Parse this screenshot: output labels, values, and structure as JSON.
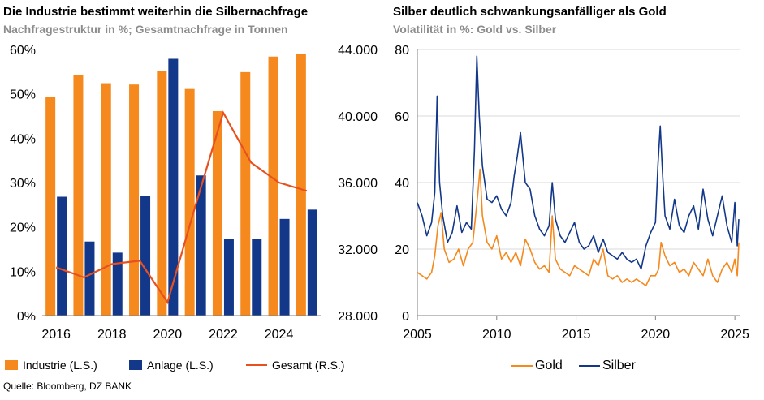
{
  "left": {
    "title": "Die Industrie bestimmt weiterhin die Silbernachfrage",
    "subtitle": "Nachfragestruktur in %; Gesamtnachfrage in Tonnen",
    "legend": [
      "Industrie (L.S.)",
      "Anlage (L.S.)",
      "Gesamt (R.S.)"
    ]
  },
  "right": {
    "title": "Silber deutlich schwankungsanfälliger als Gold",
    "subtitle": "Volatilität in %: Gold vs. Silber",
    "legend": [
      "Gold",
      "Silber"
    ]
  },
  "source": "Quelle: Bloomberg, DZ BANK",
  "colors": {
    "orange": "#f5891e",
    "navy": "#13388a",
    "red": "#e8501e",
    "grid": "#d9d9d9"
  },
  "chart_data": [
    {
      "type": "bar",
      "title": "Die Industrie bestimmt weiterhin die Silbernachfrage",
      "subtitle": "Nachfragestruktur in %; Gesamtnachfrage in Tonnen",
      "categories": [
        2016,
        2017,
        2018,
        2019,
        2020,
        2021,
        2022,
        2023,
        2024,
        2025
      ],
      "x_tick_labels": [
        "2016",
        "2018",
        "2020",
        "2022",
        "2024"
      ],
      "y_left_ticks": [
        "0%",
        "10%",
        "20%",
        "30%",
        "40%",
        "50%",
        "60%"
      ],
      "y_left_range": [
        0,
        60
      ],
      "y_right_ticks": [
        "28.000",
        "32.000",
        "36.000",
        "40.000",
        "44.000"
      ],
      "y_right_range": [
        28000,
        44000
      ],
      "series": [
        {
          "name": "Industrie (L.S.)",
          "axis": "left",
          "kind": "bar",
          "values": [
            49.3,
            54.2,
            52.4,
            52.1,
            55.1,
            51.1,
            46.1,
            54.9,
            58.4,
            59.0
          ]
        },
        {
          "name": "Anlage (L.S.)",
          "axis": "left",
          "kind": "bar",
          "values": [
            26.8,
            16.7,
            14.2,
            26.9,
            57.9,
            31.6,
            17.2,
            17.2,
            21.8,
            23.9
          ]
        },
        {
          "name": "Gesamt (R.S.)",
          "axis": "right",
          "kind": "line",
          "values": [
            30900,
            30300,
            31100,
            31300,
            28800,
            34600,
            40200,
            37200,
            36000,
            35500
          ]
        }
      ]
    },
    {
      "type": "line",
      "title": "Silber deutlich schwankungsanfälliger als Gold",
      "subtitle": "Volatilität in %: Gold vs. Silber",
      "x_range": [
        2005,
        2025.3
      ],
      "x_tick_labels": [
        "2005",
        "2010",
        "2015",
        "2020",
        "2025"
      ],
      "y_range": [
        0,
        80
      ],
      "y_ticks": [
        "0",
        "20",
        "40",
        "60",
        "80"
      ],
      "series": [
        {
          "name": "Gold",
          "x": [
            2005.0,
            2005.3,
            2005.6,
            2005.9,
            2006.1,
            2006.3,
            2006.5,
            2006.7,
            2007.0,
            2007.3,
            2007.6,
            2007.9,
            2008.2,
            2008.5,
            2008.8,
            2008.95,
            2009.1,
            2009.4,
            2009.7,
            2010.0,
            2010.3,
            2010.6,
            2010.9,
            2011.2,
            2011.5,
            2011.8,
            2012.1,
            2012.4,
            2012.7,
            2013.0,
            2013.3,
            2013.5,
            2013.7,
            2014.0,
            2014.3,
            2014.6,
            2014.9,
            2015.2,
            2015.5,
            2015.8,
            2016.1,
            2016.4,
            2016.7,
            2017.0,
            2017.3,
            2017.6,
            2017.9,
            2018.2,
            2018.5,
            2018.8,
            2019.1,
            2019.4,
            2019.7,
            2020.0,
            2020.2,
            2020.35,
            2020.6,
            2020.9,
            2021.2,
            2021.5,
            2021.8,
            2022.1,
            2022.4,
            2022.7,
            2023.0,
            2023.3,
            2023.6,
            2023.9,
            2024.2,
            2024.5,
            2024.8,
            2025.0,
            2025.15,
            2025.25
          ],
          "y": [
            13,
            12,
            11,
            13,
            18,
            27,
            31,
            20,
            16,
            17,
            20,
            15,
            20,
            22,
            36,
            44,
            30,
            22,
            20,
            24,
            17,
            19,
            16,
            19,
            15,
            23,
            20,
            16,
            14,
            15,
            13,
            30,
            17,
            14,
            13,
            12,
            15,
            14,
            13,
            12,
            17,
            15,
            20,
            12,
            11,
            12,
            10,
            11,
            10,
            11,
            10,
            9,
            12,
            12,
            14,
            22,
            18,
            15,
            16,
            13,
            14,
            12,
            16,
            14,
            12,
            17,
            12,
            10,
            14,
            16,
            13,
            17,
            12,
            22
          ]
        },
        {
          "name": "Silber",
          "x": [
            2005.0,
            2005.3,
            2005.6,
            2005.9,
            2006.1,
            2006.25,
            2006.4,
            2006.6,
            2006.9,
            2007.2,
            2007.5,
            2007.8,
            2008.1,
            2008.4,
            2008.6,
            2008.75,
            2008.9,
            2009.1,
            2009.4,
            2009.7,
            2010.0,
            2010.3,
            2010.6,
            2010.9,
            2011.1,
            2011.3,
            2011.5,
            2011.8,
            2012.1,
            2012.4,
            2012.7,
            2013.0,
            2013.3,
            2013.5,
            2013.7,
            2014.0,
            2014.3,
            2014.6,
            2014.9,
            2015.2,
            2015.5,
            2015.8,
            2016.1,
            2016.4,
            2016.7,
            2017.0,
            2017.3,
            2017.6,
            2017.9,
            2018.2,
            2018.5,
            2018.8,
            2019.1,
            2019.4,
            2019.7,
            2020.0,
            2020.15,
            2020.3,
            2020.45,
            2020.6,
            2020.9,
            2021.2,
            2021.5,
            2021.8,
            2022.1,
            2022.4,
            2022.7,
            2023.0,
            2023.3,
            2023.6,
            2023.9,
            2024.2,
            2024.5,
            2024.8,
            2025.0,
            2025.15,
            2025.25
          ],
          "y": [
            34,
            30,
            24,
            28,
            37,
            66,
            40,
            30,
            22,
            25,
            33,
            25,
            28,
            26,
            50,
            78,
            60,
            45,
            35,
            34,
            36,
            32,
            30,
            34,
            42,
            48,
            55,
            40,
            38,
            30,
            26,
            24,
            27,
            40,
            29,
            24,
            22,
            25,
            28,
            22,
            20,
            21,
            24,
            19,
            23,
            19,
            18,
            17,
            19,
            17,
            16,
            17,
            14,
            21,
            25,
            28,
            45,
            57,
            42,
            30,
            26,
            35,
            27,
            25,
            30,
            33,
            26,
            38,
            29,
            24,
            30,
            36,
            27,
            22,
            34,
            21,
            29
          ]
        }
      ]
    }
  ]
}
